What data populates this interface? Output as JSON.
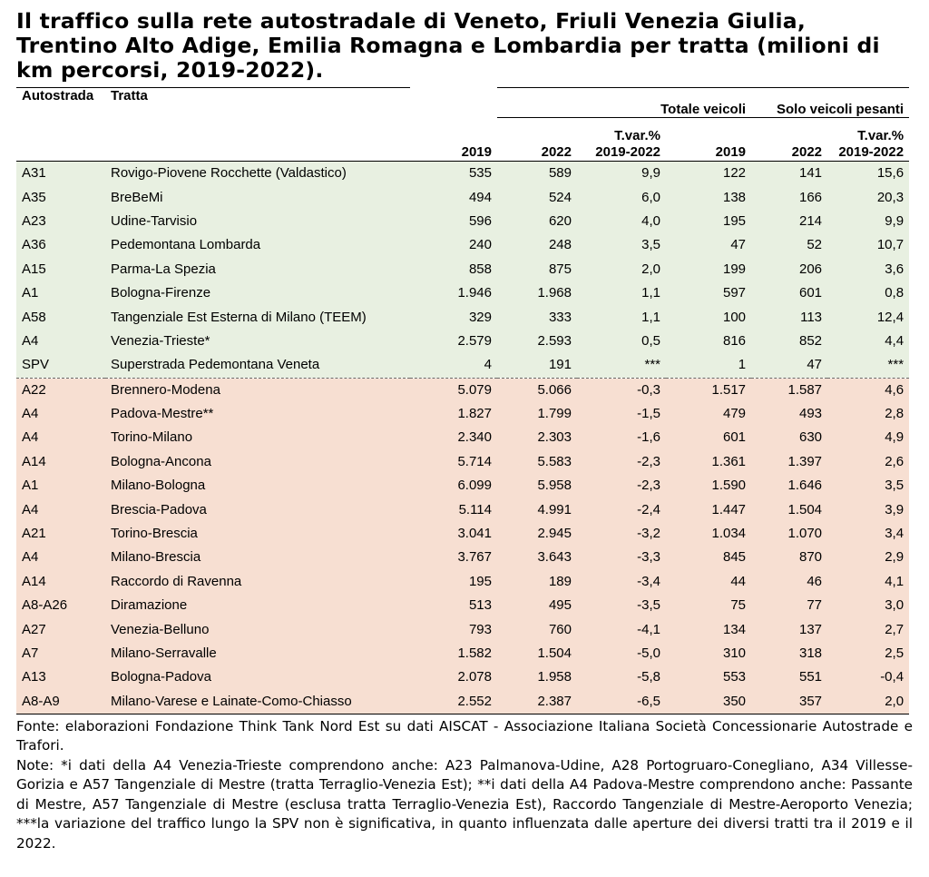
{
  "title": "Il traffico sulla rete autostradale di Veneto, Friuli Venezia Giulia, Trentino Alto Adige, Emilia Romagna e Lombardia per tratta (milioni di km percorsi, 2019-2022).",
  "headers": {
    "autostrada": "Autostrada",
    "tratta": "Tratta",
    "group_total": "Totale veicoli",
    "group_heavy": "Solo veicoli pesanti",
    "y2019": "2019",
    "y2022": "2022",
    "tvar_line1": "T.var.%",
    "tvar_line2": "2019-2022"
  },
  "colors": {
    "positive_bg": "#e8f0e1",
    "negative_bg": "#f7dfd2"
  },
  "chart_data": {
    "type": "table",
    "columns": [
      "Autostrada",
      "Tratta",
      "Totale veicoli 2019",
      "Totale veicoli 2022",
      "Totale veicoli T.var.% 2019-2022",
      "Solo veicoli pesanti 2019",
      "Solo veicoli pesanti 2022",
      "Solo veicoli pesanti T.var.% 2019-2022"
    ],
    "rows": [
      {
        "group": "pos",
        "cells": [
          "A31",
          "Rovigo-Piovene Rocchette (Valdastico)",
          "535",
          "589",
          "9,9",
          "122",
          "141",
          "15,6"
        ]
      },
      {
        "group": "pos",
        "cells": [
          "A35",
          "BreBeMi",
          "494",
          "524",
          "6,0",
          "138",
          "166",
          "20,3"
        ]
      },
      {
        "group": "pos",
        "cells": [
          "A23",
          "Udine-Tarvisio",
          "596",
          "620",
          "4,0",
          "195",
          "214",
          "9,9"
        ]
      },
      {
        "group": "pos",
        "cells": [
          "A36",
          "Pedemontana Lombarda",
          "240",
          "248",
          "3,5",
          "47",
          "52",
          "10,7"
        ]
      },
      {
        "group": "pos",
        "cells": [
          "A15",
          "Parma-La Spezia",
          "858",
          "875",
          "2,0",
          "199",
          "206",
          "3,6"
        ]
      },
      {
        "group": "pos",
        "cells": [
          "A1",
          "Bologna-Firenze",
          "1.946",
          "1.968",
          "1,1",
          "597",
          "601",
          "0,8"
        ]
      },
      {
        "group": "pos",
        "cells": [
          "A58",
          "Tangenziale Est Esterna di Milano (TEEM)",
          "329",
          "333",
          "1,1",
          "100",
          "113",
          "12,4"
        ]
      },
      {
        "group": "pos",
        "cells": [
          "A4",
          "Venezia-Trieste*",
          "2.579",
          "2.593",
          "0,5",
          "816",
          "852",
          "4,4"
        ]
      },
      {
        "group": "pos",
        "cells": [
          "SPV",
          "Superstrada Pedemontana Veneta",
          "4",
          "191",
          "***",
          "1",
          "47",
          "***"
        ]
      },
      {
        "group": "neg",
        "cells": [
          "A22",
          "Brennero-Modena",
          "5.079",
          "5.066",
          "-0,3",
          "1.517",
          "1.587",
          "4,6"
        ]
      },
      {
        "group": "neg",
        "cells": [
          "A4",
          "Padova-Mestre**",
          "1.827",
          "1.799",
          "-1,5",
          "479",
          "493",
          "2,8"
        ]
      },
      {
        "group": "neg",
        "cells": [
          "A4",
          "Torino-Milano",
          "2.340",
          "2.303",
          "-1,6",
          "601",
          "630",
          "4,9"
        ]
      },
      {
        "group": "neg",
        "cells": [
          "A14",
          "Bologna-Ancona",
          "5.714",
          "5.583",
          "-2,3",
          "1.361",
          "1.397",
          "2,6"
        ]
      },
      {
        "group": "neg",
        "cells": [
          "A1",
          "Milano-Bologna",
          "6.099",
          "5.958",
          "-2,3",
          "1.590",
          "1.646",
          "3,5"
        ]
      },
      {
        "group": "neg",
        "cells": [
          "A4",
          "Brescia-Padova",
          "5.114",
          "4.991",
          "-2,4",
          "1.447",
          "1.504",
          "3,9"
        ]
      },
      {
        "group": "neg",
        "cells": [
          "A21",
          "Torino-Brescia",
          "3.041",
          "2.945",
          "-3,2",
          "1.034",
          "1.070",
          "3,4"
        ]
      },
      {
        "group": "neg",
        "cells": [
          "A4",
          "Milano-Brescia",
          "3.767",
          "3.643",
          "-3,3",
          "845",
          "870",
          "2,9"
        ]
      },
      {
        "group": "neg",
        "cells": [
          "A14",
          "Raccordo di Ravenna",
          "195",
          "189",
          "-3,4",
          "44",
          "46",
          "4,1"
        ]
      },
      {
        "group": "neg",
        "cells": [
          "A8-A26",
          "Diramazione",
          "513",
          "495",
          "-3,5",
          "75",
          "77",
          "3,0"
        ]
      },
      {
        "group": "neg",
        "cells": [
          "A27",
          "Venezia-Belluno",
          "793",
          "760",
          "-4,1",
          "134",
          "137",
          "2,7"
        ]
      },
      {
        "group": "neg",
        "cells": [
          "A7",
          "Milano-Serravalle",
          "1.582",
          "1.504",
          "-5,0",
          "310",
          "318",
          "2,5"
        ]
      },
      {
        "group": "neg",
        "cells": [
          "A13",
          "Bologna-Padova",
          "2.078",
          "1.958",
          "-5,8",
          "553",
          "551",
          "-0,4"
        ]
      },
      {
        "group": "neg",
        "cells": [
          "A8-A9",
          "Milano-Varese e Lainate-Como-Chiasso",
          "2.552",
          "2.387",
          "-6,5",
          "350",
          "357",
          "2,0"
        ]
      }
    ]
  },
  "source": "Fonte: elaborazioni Fondazione Think Tank Nord Est su dati AISCAT - Associazione Italiana Società Concessionarie Autostrade e Trafori.",
  "notes": "Note: *i dati della A4 Venezia-Trieste comprendono anche: A23 Palmanova-Udine, A28 Portogruaro-Conegliano, A34 Villesse-Gorizia e A57 Tangenziale di Mestre (tratta Terraglio-Venezia Est); **i dati della A4 Padova-Mestre comprendono anche: Passante di Mestre, A57 Tangenziale di Mestre (esclusa tratta Terraglio-Venezia Est), Raccordo Tangenziale di Mestre-Aeroporto Venezia; ***la variazione del traffico lungo la SPV non è significativa, in quanto influenzata dalle aperture dei diversi tratti tra il 2019 e il 2022."
}
